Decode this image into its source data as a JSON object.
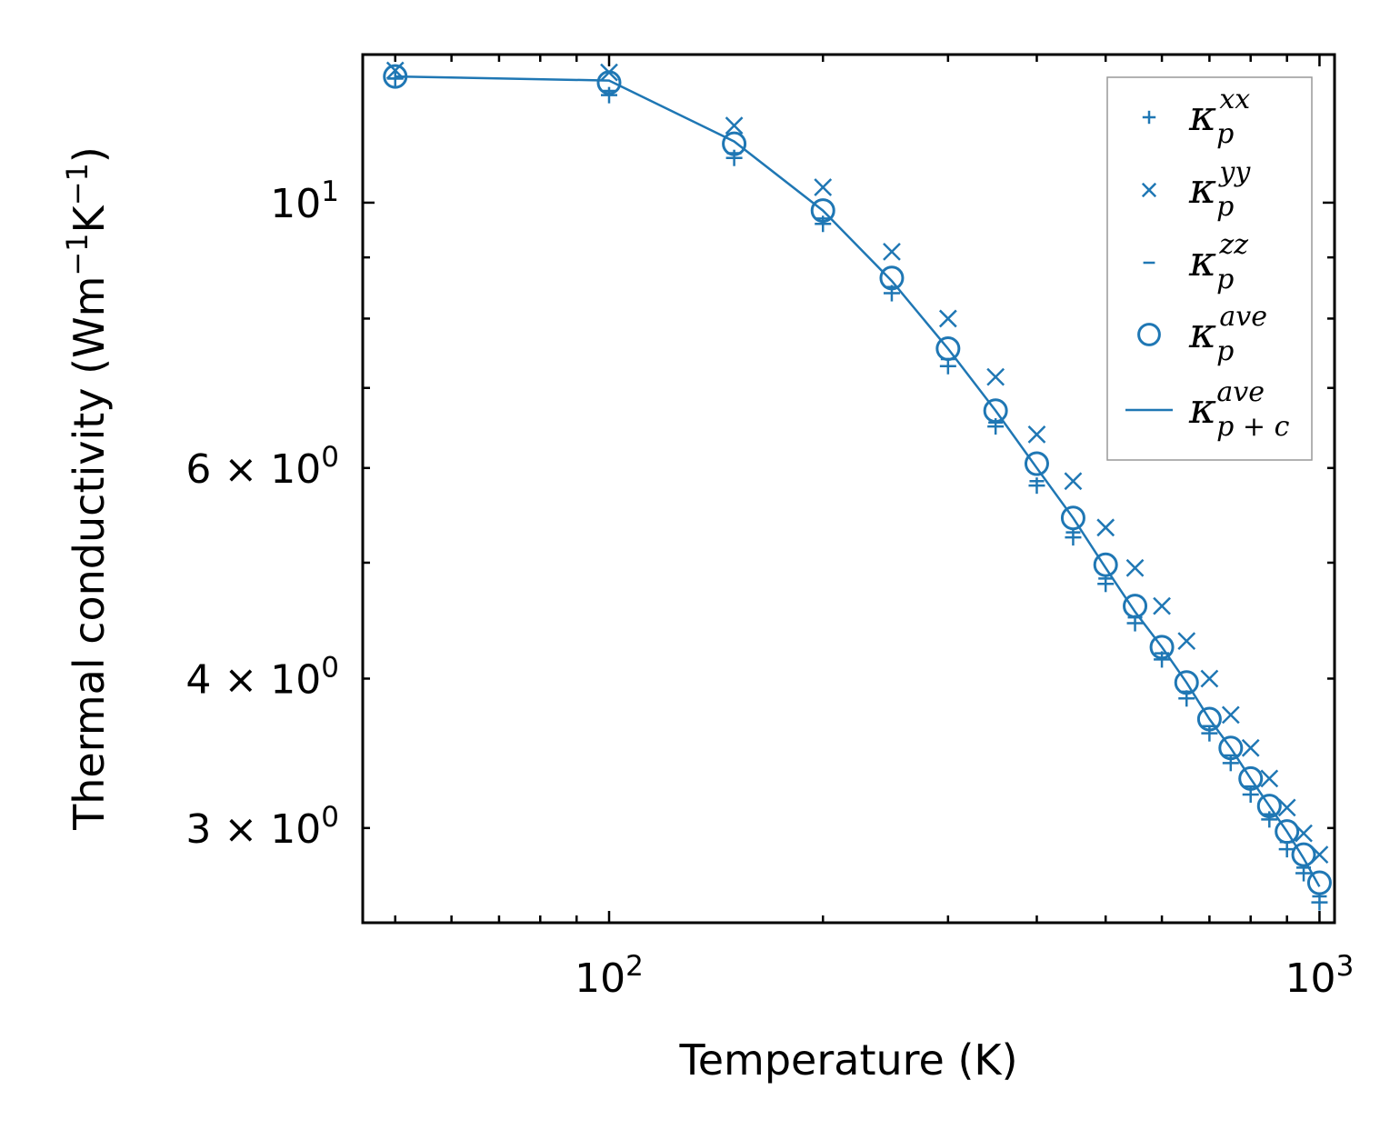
{
  "chart_data": {
    "type": "scatter",
    "xscale": "log",
    "yscale": "log",
    "xlim": [
      45,
      1050
    ],
    "ylim": [
      2.5,
      13.3
    ],
    "xlabel": {
      "base": "Temperature (K)"
    },
    "ylabel": {
      "base": "Thermal conductivity (Wm",
      "sup1": "−1",
      "mid": "K",
      "sup2": "−1",
      "end": ")"
    },
    "xticks": [
      {
        "value": 100,
        "base": "10",
        "exp": "2"
      },
      {
        "value": 1000,
        "base": "10",
        "exp": "3"
      }
    ],
    "yticks": [
      {
        "value": 10,
        "base": "10",
        "exp": "1",
        "prefix": ""
      },
      {
        "value": 6,
        "base": "10",
        "exp": "0",
        "prefix": "6 × "
      },
      {
        "value": 4,
        "base": "10",
        "exp": "0",
        "prefix": "4 × "
      },
      {
        "value": 3,
        "base": "10",
        "exp": "0",
        "prefix": "3 × "
      }
    ],
    "color": "#1f77b4",
    "legend_position": "upper right",
    "x": [
      50,
      100,
      150,
      200,
      250,
      300,
      350,
      400,
      450,
      500,
      550,
      600,
      650,
      700,
      750,
      800,
      850,
      900,
      950,
      1000
    ],
    "series": [
      {
        "marker": "plus",
        "legend_base": "κ",
        "legend_sub": "p",
        "legend_sup": "xx",
        "values": [
          12.7,
          12.3,
          10.9,
          9.6,
          8.4,
          7.3,
          6.5,
          5.8,
          5.25,
          4.8,
          4.45,
          4.15,
          3.85,
          3.6,
          3.4,
          3.2,
          3.05,
          2.88,
          2.75,
          2.6
        ]
      },
      {
        "marker": "x",
        "legend_base": "κ",
        "legend_sub": "p",
        "legend_sup": "yy",
        "values": [
          12.9,
          12.85,
          11.6,
          10.3,
          9.1,
          8.0,
          7.15,
          6.4,
          5.85,
          5.35,
          4.95,
          4.6,
          4.3,
          4.0,
          3.73,
          3.5,
          3.3,
          3.12,
          2.97,
          2.85
        ]
      },
      {
        "marker": "minus",
        "legend_base": "κ",
        "legend_sub": "p",
        "legend_sup": "zz",
        "values": [
          12.7,
          12.4,
          11.0,
          9.7,
          8.5,
          7.4,
          6.55,
          5.85,
          5.3,
          4.85,
          4.5,
          4.2,
          3.9,
          3.65,
          3.45,
          3.25,
          3.08,
          2.92,
          2.78,
          2.63
        ]
      },
      {
        "marker": "circle",
        "legend_base": "κ",
        "legend_sub": "p",
        "legend_sup": "ave",
        "values": [
          12.75,
          12.6,
          11.2,
          9.85,
          8.65,
          7.55,
          6.7,
          6.05,
          5.45,
          4.98,
          4.6,
          4.25,
          3.97,
          3.7,
          3.5,
          3.3,
          3.13,
          2.98,
          2.85,
          2.7
        ]
      },
      {
        "marker": "line",
        "legend_base": "κ",
        "legend_sub": "p + c",
        "legend_sup": "ave",
        "values": [
          12.75,
          12.65,
          11.25,
          9.85,
          8.6,
          7.55,
          6.7,
          6.0,
          5.45,
          4.95,
          4.55,
          4.25,
          3.97,
          3.7,
          3.5,
          3.3,
          3.13,
          2.98,
          2.83,
          2.68
        ]
      }
    ]
  }
}
